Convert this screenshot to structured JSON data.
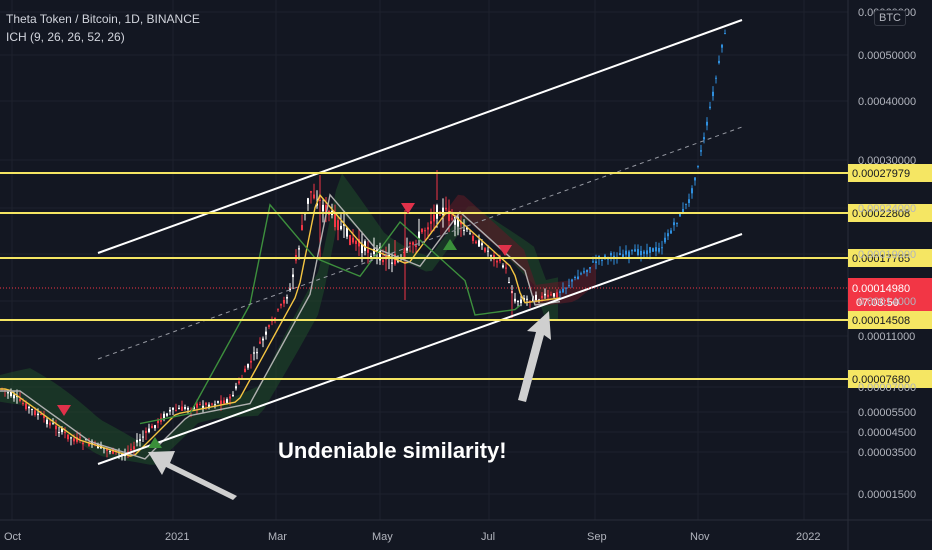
{
  "header": {
    "symbol_line": "Theta Token / Bitcoin, 1D, BINANCE",
    "indicator_line": "ICH (9, 26, 26, 52, 26)",
    "currency_badge": "BTC"
  },
  "colors": {
    "background": "#131722",
    "up_candle": "#f23645",
    "down_candle": "#ffffff",
    "recent_candles": "#2f8fde",
    "level_lines": "#f5e663",
    "trend_lines": "#ffffff",
    "tenkan": "#f5c542",
    "kijun": "#b0b0b0",
    "chikou": "#3d8f3d",
    "cloud_bull": "#1f4d2a",
    "cloud_bear": "#5c1a26",
    "last_price_tag": "#f23645"
  },
  "chart_data": {
    "type": "candlestick",
    "title": "Theta Token / Bitcoin, 1D, BINANCE",
    "x_axis": {
      "tick_labels": [
        "Oct",
        "2021",
        "Mar",
        "May",
        "Jul",
        "Sep",
        "Nov",
        "2022"
      ]
    },
    "y_axis": {
      "scale": "log",
      "tick_labels": [
        "0.00060000",
        "0.00050000",
        "0.00040000",
        "0.00030000",
        "0.00024000",
        "0.00019000",
        "0.00014000",
        "0.00011000",
        "0.00007000",
        "0.00005500",
        "0.00004500",
        "0.00003500",
        "0.00001500"
      ]
    },
    "price_levels": [
      {
        "value": "0.00027979"
      },
      {
        "value": "0.00022808"
      },
      {
        "value": "0.00017765"
      },
      {
        "value": "0.00014508"
      },
      {
        "value": "0.00007680"
      }
    ],
    "last_price": {
      "value": "0.00014980",
      "countdown": "07:03:50"
    },
    "indicator": "ICH (9, 26, 26, 52, 26)",
    "approx_path": [
      {
        "x": "Oct",
        "close": 7e-05
      },
      {
        "x": "Nov",
        "close": 4.2e-05
      },
      {
        "x": "Dec",
        "close": 3.3e-05
      },
      {
        "x": "2021",
        "close": 5.5e-05
      },
      {
        "x": "Feb",
        "close": 6.2e-05
      },
      {
        "x": "Mar",
        "close": 0.00015
      },
      {
        "x": "Mar",
        "close": 0.00026
      },
      {
        "x": "Apr",
        "close": 0.0002
      },
      {
        "x": "May",
        "close": 0.00018
      },
      {
        "x": "Jun",
        "close": 0.00024
      },
      {
        "x": "Jul",
        "close": 0.000175
      },
      {
        "x": "Jul",
        "close": 0.00014
      },
      {
        "x": "Aug",
        "close": 0.000145
      },
      {
        "x": "Sep",
        "close": 0.000185
      },
      {
        "x": "Oct",
        "close": 0.000195
      },
      {
        "x": "Nov",
        "close": 0.00025
      },
      {
        "x": "Nov",
        "close": 0.00034
      },
      {
        "x": "Nov",
        "close": 0.00055
      }
    ],
    "annotations": [
      {
        "text": "Undeniable similarity!"
      }
    ]
  }
}
